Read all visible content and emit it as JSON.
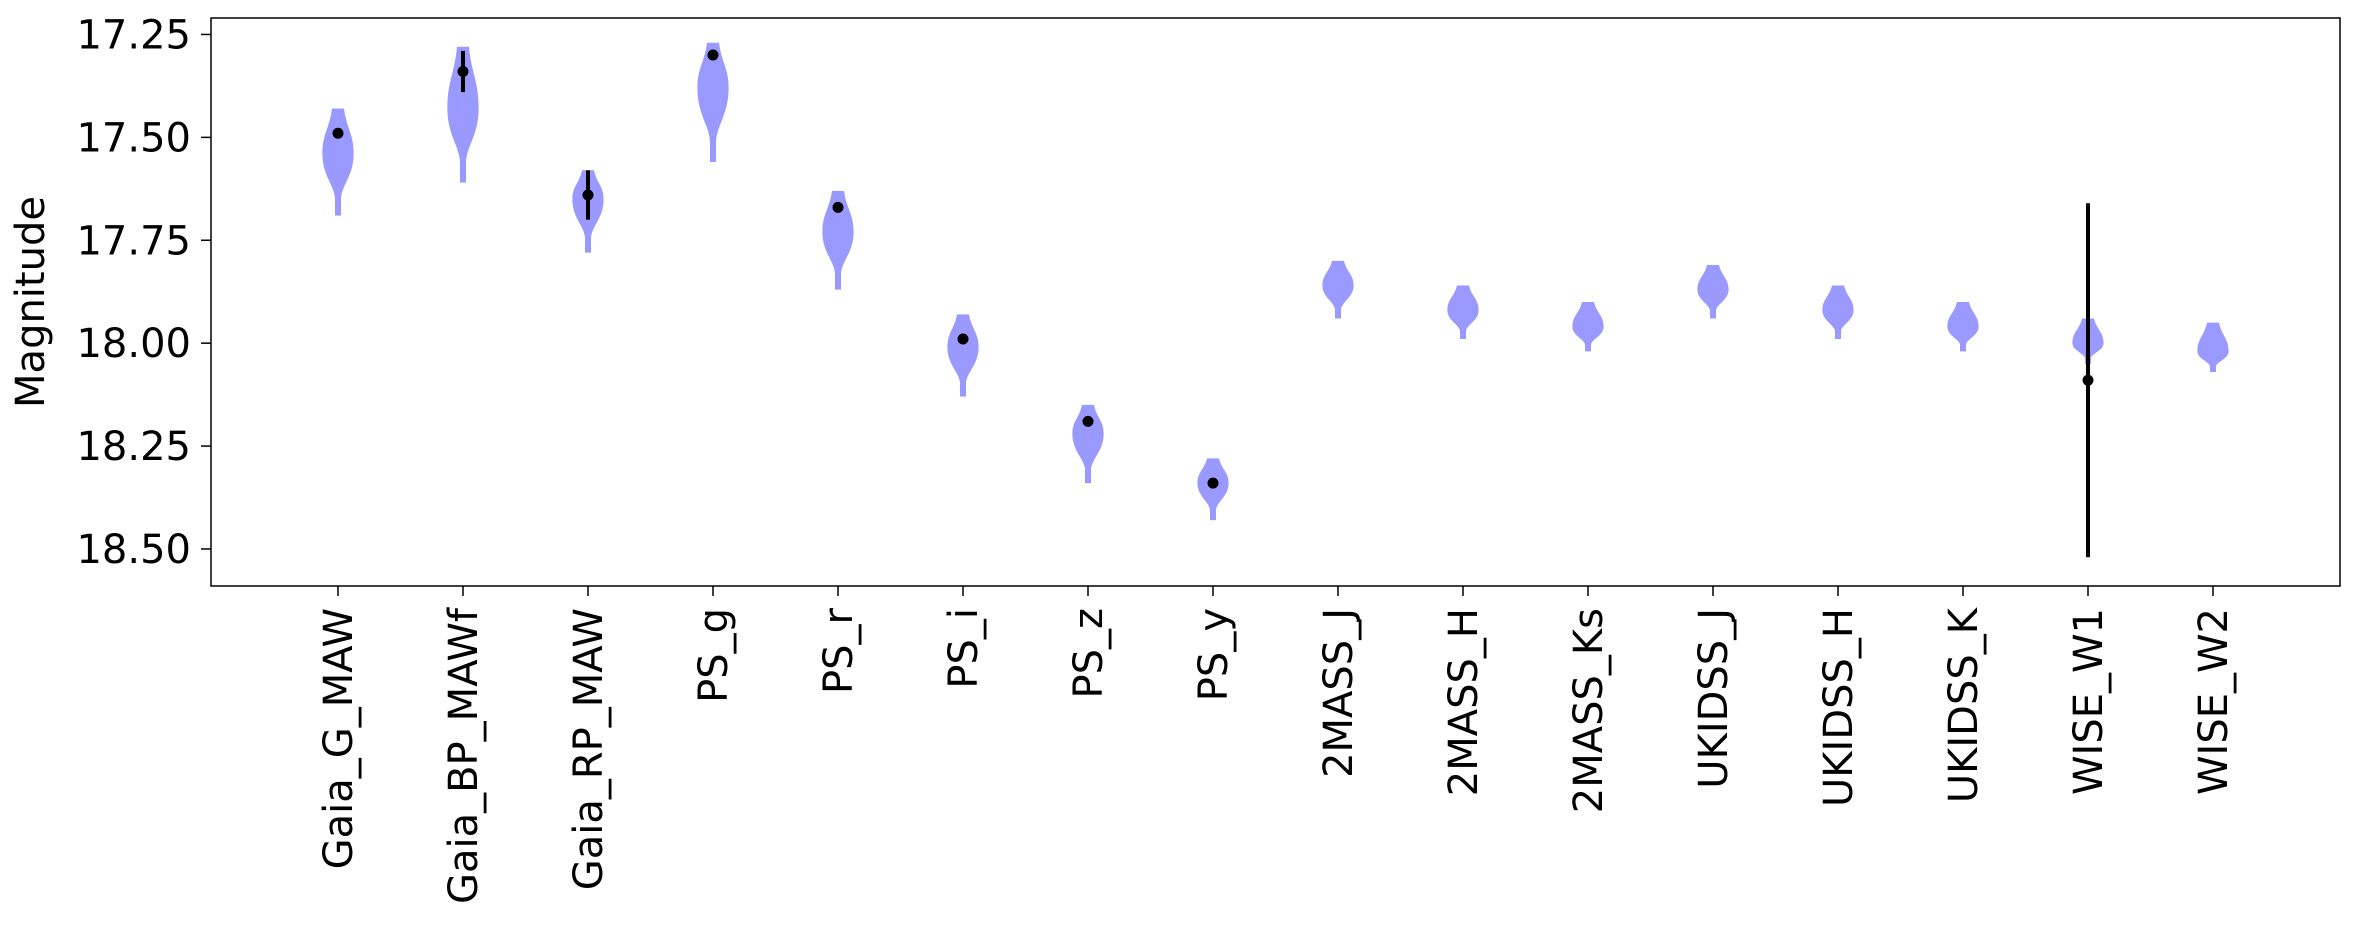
{
  "chart_data": {
    "type": "violin",
    "ylabel": "Magnitude",
    "y_inverted": true,
    "ylim": [
      17.21,
      18.59
    ],
    "yticks": [
      "17.25",
      "17.50",
      "17.75",
      "18.00",
      "18.25",
      "18.50"
    ],
    "grid": false,
    "violin_color": "#9999ff",
    "marker_color": "#000000",
    "categories": [
      "Gaia_G_MAW",
      "Gaia_BP_MAWf",
      "Gaia_RP_MAW",
      "PS_g",
      "PS_r",
      "PS_i",
      "PS_z",
      "PS_y",
      "2MASS_J",
      "2MASS_H",
      "2MASS_Ks",
      "UKIDSS_J",
      "UKIDSS_H",
      "UKIDSS_K",
      "WISE_W1",
      "WISE_W2"
    ],
    "violins": [
      {
        "top": 17.43,
        "bottom": 17.69,
        "center": 17.54,
        "half_width": 0.25
      },
      {
        "top": 17.28,
        "bottom": 17.61,
        "center": 17.43,
        "half_width": 0.25
      },
      {
        "top": 17.58,
        "bottom": 17.78,
        "center": 17.65,
        "half_width": 0.25
      },
      {
        "top": 17.27,
        "bottom": 17.56,
        "center": 17.38,
        "half_width": 0.25
      },
      {
        "top": 17.63,
        "bottom": 17.87,
        "center": 17.73,
        "half_width": 0.25
      },
      {
        "top": 17.93,
        "bottom": 18.13,
        "center": 18.01,
        "half_width": 0.25
      },
      {
        "top": 18.15,
        "bottom": 18.34,
        "center": 18.22,
        "half_width": 0.25
      },
      {
        "top": 18.28,
        "bottom": 18.43,
        "center": 18.34,
        "half_width": 0.25
      },
      {
        "top": 17.8,
        "bottom": 17.94,
        "center": 17.86,
        "half_width": 0.25
      },
      {
        "top": 17.86,
        "bottom": 17.99,
        "center": 17.92,
        "half_width": 0.25
      },
      {
        "top": 17.9,
        "bottom": 18.02,
        "center": 17.96,
        "half_width": 0.25
      },
      {
        "top": 17.81,
        "bottom": 17.94,
        "center": 17.87,
        "half_width": 0.25
      },
      {
        "top": 17.86,
        "bottom": 17.99,
        "center": 17.92,
        "half_width": 0.25
      },
      {
        "top": 17.9,
        "bottom": 18.02,
        "center": 17.96,
        "half_width": 0.25
      },
      {
        "top": 17.94,
        "bottom": 18.05,
        "center": 18.0,
        "half_width": 0.25
      },
      {
        "top": 17.95,
        "bottom": 18.07,
        "center": 18.02,
        "half_width": 0.25
      }
    ],
    "measurements": [
      {
        "category": "Gaia_G_MAW",
        "value": 17.49,
        "error": 0.0
      },
      {
        "category": "Gaia_BP_MAWf",
        "value": 17.34,
        "error": 0.05
      },
      {
        "category": "Gaia_RP_MAW",
        "value": 17.64,
        "error": 0.06
      },
      {
        "category": "PS_g",
        "value": 17.3,
        "error": 0.0
      },
      {
        "category": "PS_r",
        "value": 17.67,
        "error": 0.0
      },
      {
        "category": "PS_i",
        "value": 17.99,
        "error": 0.0
      },
      {
        "category": "PS_z",
        "value": 18.19,
        "error": 0.0
      },
      {
        "category": "PS_y",
        "value": 18.34,
        "error": 0.0
      },
      {
        "category": "WISE_W1",
        "value": 18.09,
        "error": 0.43
      }
    ]
  }
}
